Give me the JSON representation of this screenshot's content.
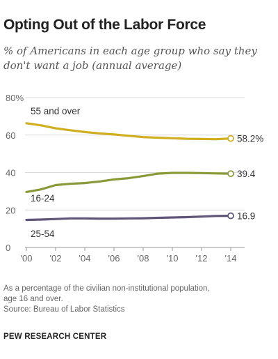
{
  "header": {
    "title": "Opting Out of the Labor Force",
    "subtitle": "% of Americans in each age group who say they don't want a job (annual average)"
  },
  "notes": {
    "line1": "As a percentage of the civilian non-institutional population,",
    "line2": "age 16 and over.",
    "source": "Source: Bureau of Labor Statistics"
  },
  "footer": {
    "brand": "PEW RESEARCH CENTER"
  },
  "chart_data": {
    "type": "line",
    "title": "Opting Out of the Labor Force",
    "subtitle": "% of Americans in each age group who say they don't want a job (annual average)",
    "x": [
      2000,
      2001,
      2002,
      2003,
      2004,
      2005,
      2006,
      2007,
      2008,
      2009,
      2010,
      2011,
      2012,
      2013,
      2014
    ],
    "xtick_labels": [
      "'00",
      "'02",
      "'04",
      "'06",
      "'08",
      "'10",
      "'12",
      "'14"
    ],
    "xtick_values": [
      2000,
      2002,
      2004,
      2006,
      2008,
      2010,
      2012,
      2014
    ],
    "xlim": [
      2000,
      2014
    ],
    "ylim": [
      0,
      80
    ],
    "yticks": [
      0,
      20,
      40,
      60,
      80
    ],
    "ytick_labels": [
      "0",
      "20",
      "40",
      "60",
      "80%"
    ],
    "grid": true,
    "series": [
      {
        "name": "55 and over",
        "color": "#cfae1f",
        "values": [
          66.3,
          65.2,
          63.6,
          62.6,
          61.6,
          60.9,
          60.3,
          59.6,
          58.9,
          58.6,
          58.3,
          58.0,
          57.9,
          57.8,
          58.2
        ],
        "end_label": "58.2%"
      },
      {
        "name": "16-24",
        "color": "#8a9a3a",
        "values": [
          29.6,
          31.0,
          33.3,
          34.0,
          34.4,
          35.2,
          36.3,
          37.0,
          38.1,
          39.4,
          39.8,
          39.8,
          39.7,
          39.5,
          39.4
        ],
        "end_label": "39.4"
      },
      {
        "name": "25-54",
        "color": "#5e5578",
        "values": [
          14.7,
          14.9,
          15.2,
          15.5,
          15.5,
          15.4,
          15.4,
          15.5,
          15.6,
          15.8,
          16.0,
          16.2,
          16.5,
          16.8,
          16.9
        ],
        "end_label": "16.9"
      }
    ]
  }
}
